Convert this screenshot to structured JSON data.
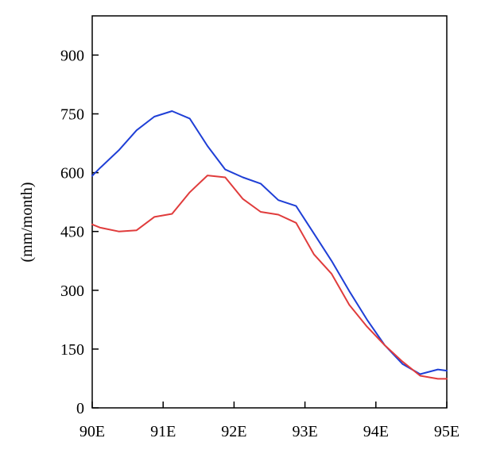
{
  "chart_data": {
    "type": "line",
    "title": "",
    "xlabel": "",
    "ylabel": "(mm/month)",
    "xlim": [
      90,
      95
    ],
    "ylim": [
      0,
      1000
    ],
    "x_ticks": [
      {
        "value": 90,
        "label": "90E"
      },
      {
        "value": 91,
        "label": "91E"
      },
      {
        "value": 92,
        "label": "92E"
      },
      {
        "value": 93,
        "label": "93E"
      },
      {
        "value": 94,
        "label": "94E"
      },
      {
        "value": 95,
        "label": "95E"
      }
    ],
    "y_ticks": [
      {
        "value": 0,
        "label": "0"
      },
      {
        "value": 150,
        "label": "150"
      },
      {
        "value": 300,
        "label": "300"
      },
      {
        "value": 450,
        "label": "450"
      },
      {
        "value": 600,
        "label": "600"
      },
      {
        "value": 750,
        "label": "750"
      },
      {
        "value": 900,
        "label": "900"
      }
    ],
    "grid": false,
    "legend": "none",
    "series": [
      {
        "color": "#1f3fd6",
        "x": [
          90.0,
          90.11,
          90.375,
          90.625,
          90.875,
          91.125,
          91.375,
          91.625,
          91.875,
          92.125,
          92.375,
          92.625,
          92.875,
          93.125,
          93.375,
          93.625,
          93.875,
          94.125,
          94.375,
          94.625,
          94.875,
          95.0
        ],
        "values": [
          592,
          612,
          657,
          708,
          743,
          757,
          738,
          668,
          608,
          588,
          572,
          530,
          515,
          445,
          375,
          298,
          225,
          160,
          112,
          86,
          98,
          95
        ]
      },
      {
        "color": "#e03c3c",
        "x": [
          90.0,
          90.11,
          90.375,
          90.625,
          90.875,
          91.125,
          91.375,
          91.625,
          91.875,
          92.125,
          92.375,
          92.625,
          92.875,
          93.125,
          93.375,
          93.625,
          93.875,
          94.125,
          94.375,
          94.625,
          94.875,
          95.0
        ],
        "values": [
          468,
          460,
          450,
          453,
          487,
          495,
          550,
          593,
          588,
          533,
          500,
          493,
          472,
          392,
          342,
          263,
          207,
          160,
          118,
          82,
          74,
          74
        ]
      }
    ]
  }
}
